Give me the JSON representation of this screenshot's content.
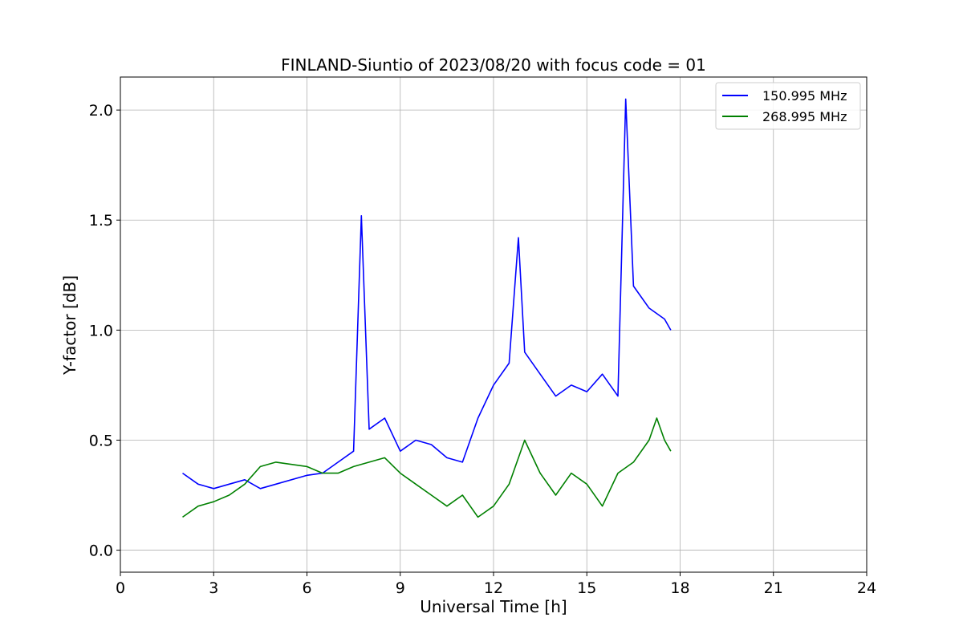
{
  "chart_data": {
    "type": "line",
    "title": "FINLAND-Siuntio of 2023/08/20 with focus code = 01",
    "xlabel": "Universal Time [h]",
    "ylabel": "Y-factor [dB]",
    "xlim": [
      0,
      24
    ],
    "ylim": [
      -0.1,
      2.15
    ],
    "xticks": [
      0,
      3,
      6,
      9,
      12,
      15,
      18,
      21,
      24
    ],
    "xtick_labels": [
      "0",
      "3",
      "6",
      "9",
      "12",
      "15",
      "18",
      "21",
      "24"
    ],
    "yticks": [
      0.0,
      0.5,
      1.0,
      1.5,
      2.0
    ],
    "ytick_labels": [
      "0.0",
      "0.5",
      "1.0",
      "1.5",
      "2.0"
    ],
    "grid": true,
    "legend_position": "top-right",
    "series": [
      {
        "name": "150.995 MHz",
        "color": "#0000ff",
        "x": [
          2.0,
          2.5,
          3.0,
          3.5,
          4.0,
          4.5,
          5.0,
          6.0,
          6.5,
          7.0,
          7.5,
          7.75,
          8.0,
          8.5,
          9.0,
          9.5,
          10.0,
          10.5,
          11.0,
          11.5,
          12.0,
          12.5,
          12.8,
          13.0,
          13.5,
          14.0,
          14.5,
          15.0,
          15.5,
          16.0,
          16.25,
          16.5,
          17.0,
          17.5,
          17.7
        ],
        "y": [
          0.35,
          0.3,
          0.28,
          0.3,
          0.32,
          0.28,
          0.3,
          0.34,
          0.35,
          0.4,
          0.45,
          1.52,
          0.55,
          0.6,
          0.45,
          0.5,
          0.48,
          0.42,
          0.4,
          0.6,
          0.75,
          0.85,
          1.42,
          0.9,
          0.8,
          0.7,
          0.75,
          0.72,
          0.8,
          0.7,
          2.05,
          1.2,
          1.1,
          1.05,
          1.0
        ]
      },
      {
        "name": "268.995 MHz",
        "color": "#008000",
        "x": [
          2.0,
          2.5,
          3.0,
          3.5,
          4.0,
          4.5,
          5.0,
          6.0,
          6.5,
          7.0,
          7.5,
          8.0,
          8.5,
          9.0,
          9.5,
          10.0,
          10.5,
          11.0,
          11.5,
          12.0,
          12.5,
          13.0,
          13.5,
          14.0,
          14.5,
          15.0,
          15.5,
          16.0,
          16.5,
          17.0,
          17.25,
          17.5,
          17.7
        ],
        "y": [
          0.15,
          0.2,
          0.22,
          0.25,
          0.3,
          0.38,
          0.4,
          0.38,
          0.35,
          0.35,
          0.38,
          0.4,
          0.42,
          0.35,
          0.3,
          0.25,
          0.2,
          0.25,
          0.15,
          0.2,
          0.3,
          0.5,
          0.35,
          0.25,
          0.35,
          0.3,
          0.2,
          0.35,
          0.4,
          0.5,
          0.6,
          0.5,
          0.45
        ]
      }
    ]
  }
}
